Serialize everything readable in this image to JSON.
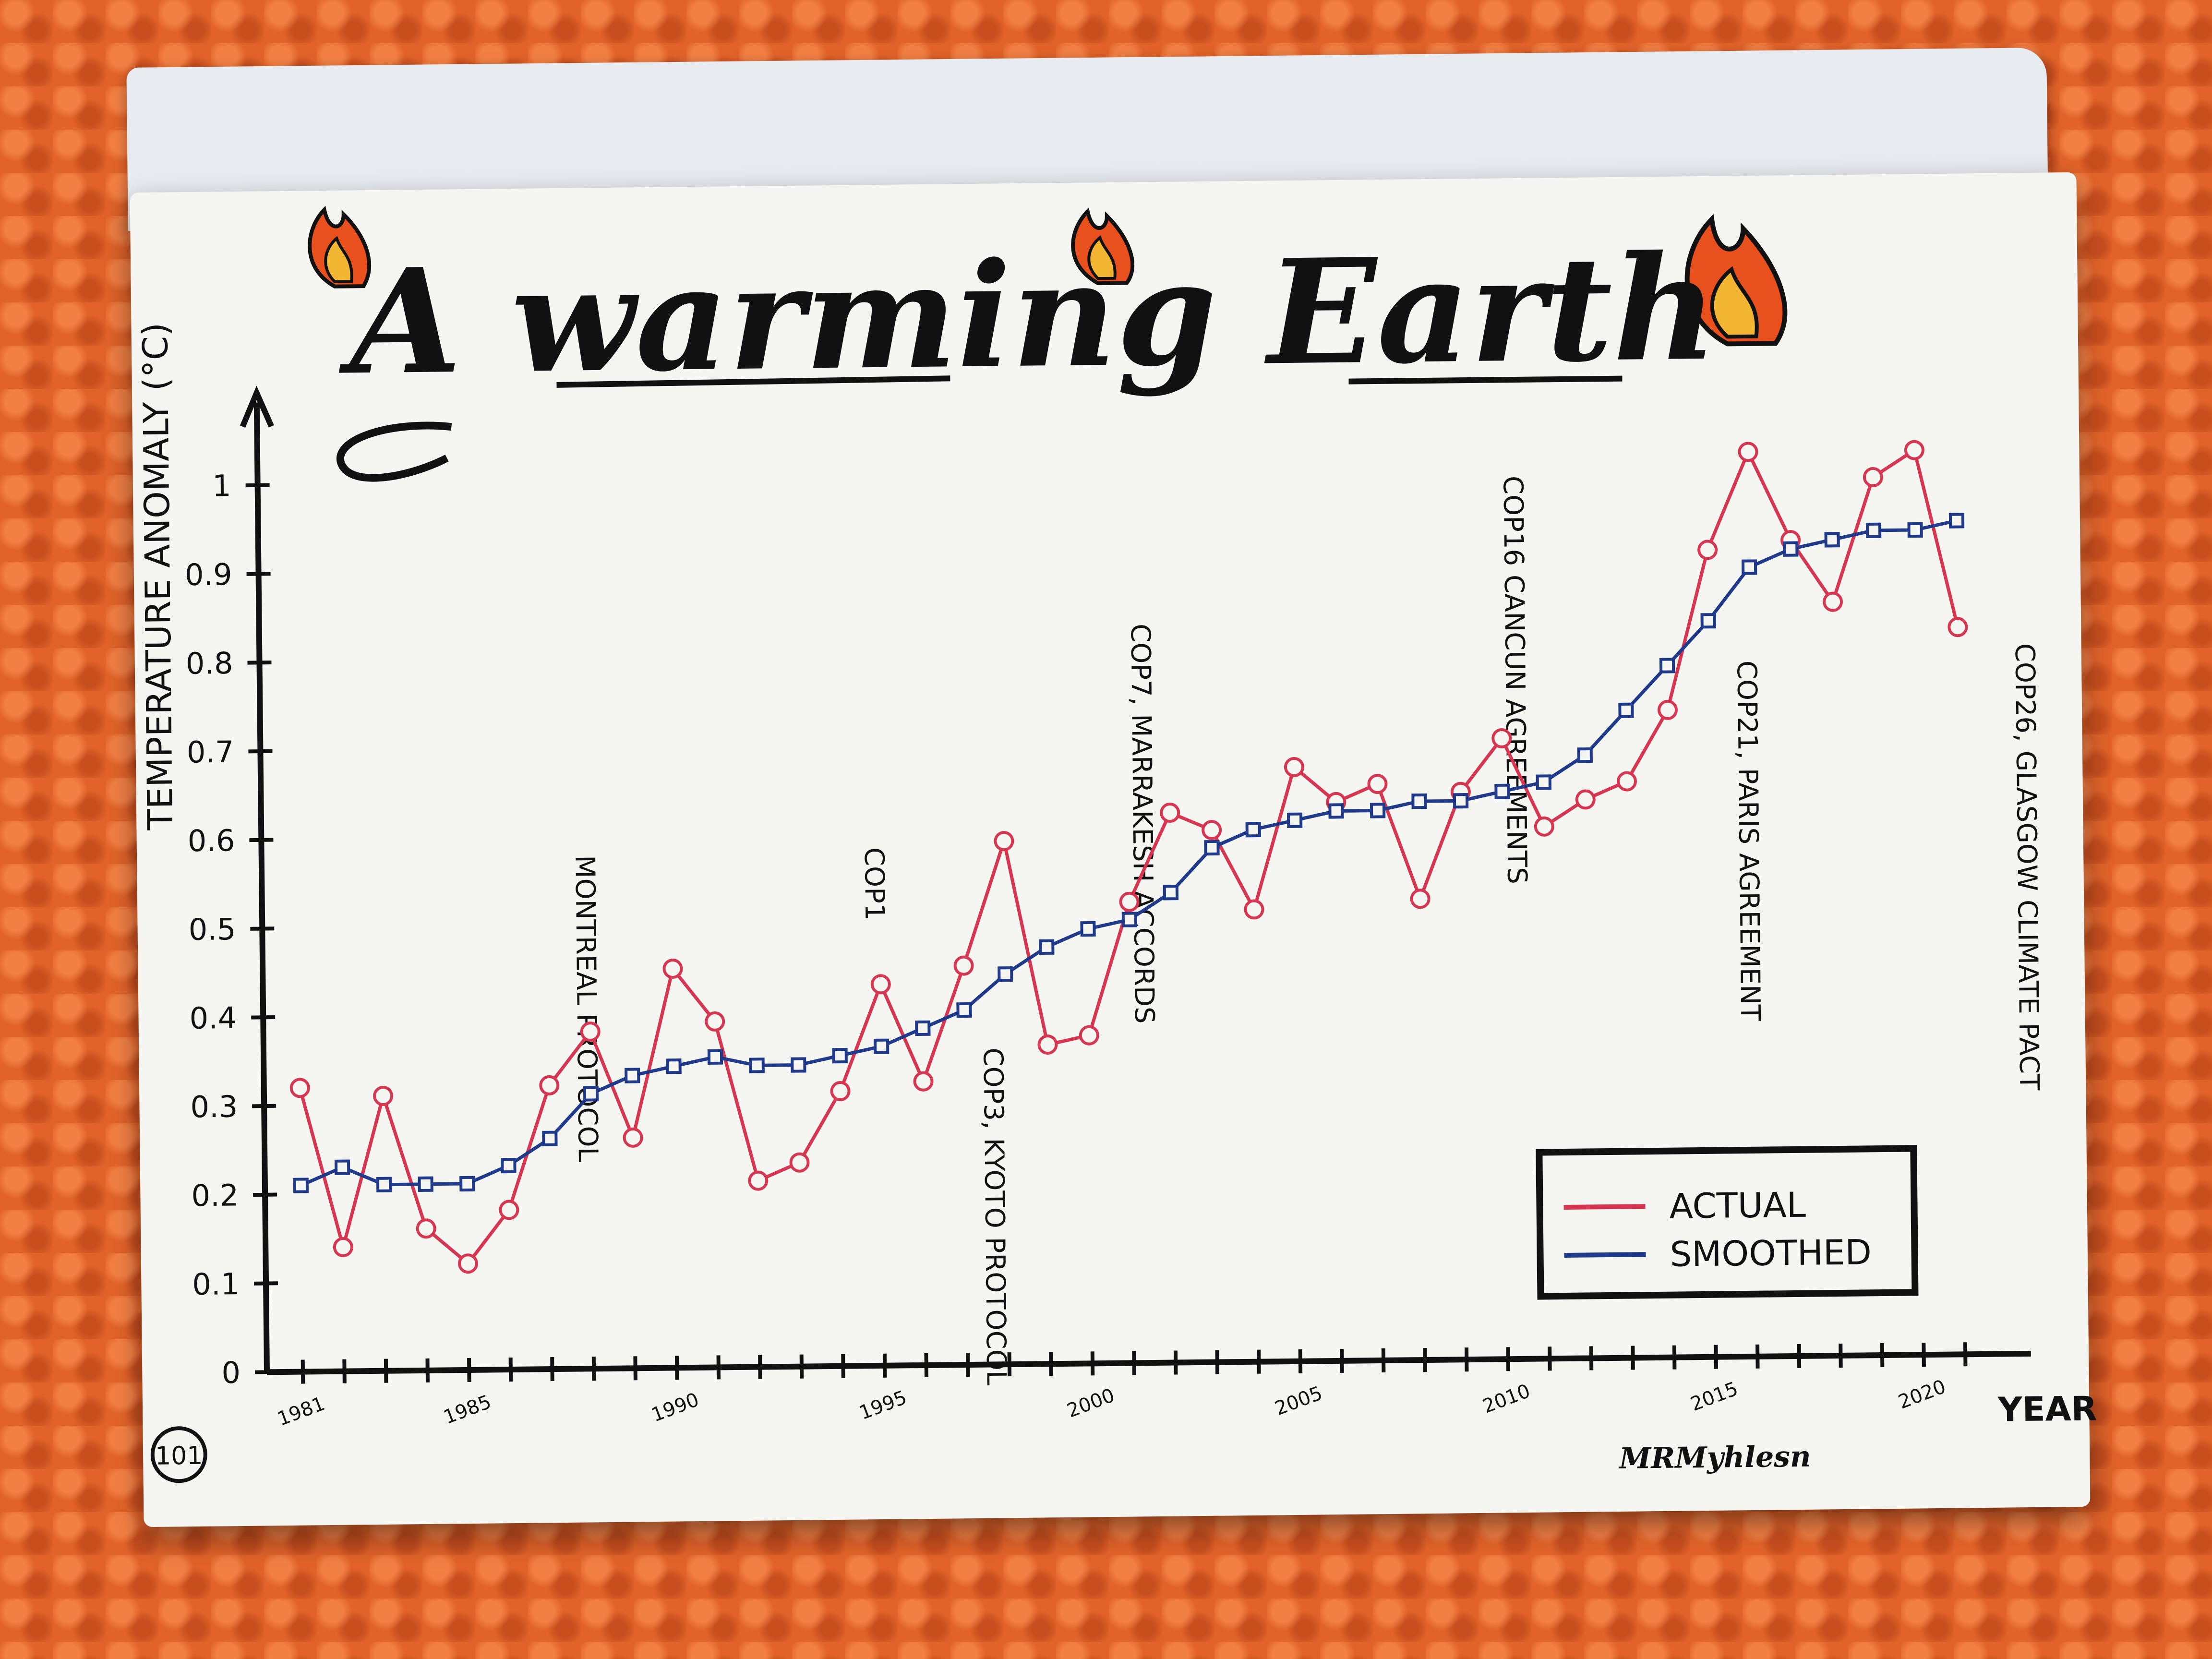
{
  "chart_data": {
    "type": "line",
    "title": "A warming Earth",
    "ylabel": "TEMPERATURE ANOMALY (°C)",
    "xlabel": "YEAR",
    "ylim": [
      0,
      1.05
    ],
    "xlim": [
      1981,
      2022
    ],
    "y_ticks": [
      0,
      0.1,
      0.2,
      0.3,
      0.4,
      0.5,
      0.6,
      0.7,
      0.8,
      0.9,
      1
    ],
    "y_tick_labels": [
      "0",
      "0.1",
      "0.2",
      "0.3",
      "0.4",
      "0.5",
      "0.6",
      "0.7",
      "0.8",
      "0.9",
      "1"
    ],
    "x_ticks": [
      1981,
      1985,
      1990,
      1995,
      2000,
      2005,
      2010,
      2015,
      2020
    ],
    "x_tick_labels": [
      "1981",
      "1985",
      "1990",
      "1995",
      "2000",
      "2005",
      "2010",
      "2015",
      "2020"
    ],
    "x": [
      1981,
      1982,
      1983,
      1984,
      1985,
      1986,
      1987,
      1988,
      1989,
      1990,
      1991,
      1992,
      1993,
      1994,
      1995,
      1996,
      1997,
      1998,
      1999,
      2000,
      2001,
      2002,
      2003,
      2004,
      2005,
      2006,
      2007,
      2008,
      2009,
      2010,
      2011,
      2012,
      2013,
      2014,
      2015,
      2016,
      2017,
      2018,
      2019,
      2020,
      2021
    ],
    "series": [
      {
        "name": "ACTUAL",
        "color": "#d6364f",
        "marker": "circle",
        "values": [
          0.32,
          0.14,
          0.31,
          0.16,
          0.12,
          0.18,
          0.32,
          0.38,
          0.26,
          0.45,
          0.39,
          0.21,
          0.23,
          0.31,
          0.43,
          0.32,
          0.45,
          0.59,
          0.36,
          0.37,
          0.52,
          0.62,
          0.6,
          0.51,
          0.67,
          0.63,
          0.65,
          0.52,
          0.64,
          0.7,
          0.6,
          0.63,
          0.65,
          0.73,
          0.91,
          1.02,
          0.92,
          0.85,
          0.99,
          1.02,
          0.82
        ]
      },
      {
        "name": "SMOOTHED",
        "color": "#1f3a8a",
        "marker": "square",
        "values": [
          0.21,
          0.23,
          0.21,
          0.21,
          0.21,
          0.23,
          0.26,
          0.31,
          0.33,
          0.34,
          0.35,
          0.34,
          0.34,
          0.35,
          0.36,
          0.38,
          0.4,
          0.44,
          0.47,
          0.49,
          0.5,
          0.53,
          0.58,
          0.6,
          0.61,
          0.62,
          0.62,
          0.63,
          0.63,
          0.64,
          0.65,
          0.68,
          0.73,
          0.78,
          0.83,
          0.89,
          0.91,
          0.92,
          0.93,
          0.93,
          0.94
        ]
      }
    ],
    "annotations": [
      {
        "year": 1987,
        "text": "MONTREAL PROTOCOL"
      },
      {
        "year": 1995,
        "text": "COP1"
      },
      {
        "year": 1997,
        "text": "COP3, KYOTO PROTOCOL"
      },
      {
        "year": 2001,
        "text": "COP7, MARRAKESH ACCORDS"
      },
      {
        "year": 2010,
        "text": "COP16 CANCUN AGREEMENTS"
      },
      {
        "year": 2015,
        "text": "COP21, PARIS AGREEMENT"
      },
      {
        "year": 2021,
        "text": "COP26, GLASGOW CLIMATE PACT"
      }
    ],
    "legend": {
      "position": "bottom-right",
      "entries": [
        "ACTUAL",
        "SMOOTHED"
      ]
    },
    "grid": false
  },
  "page": {
    "number": "101",
    "signature": "MRMyhlesn"
  }
}
